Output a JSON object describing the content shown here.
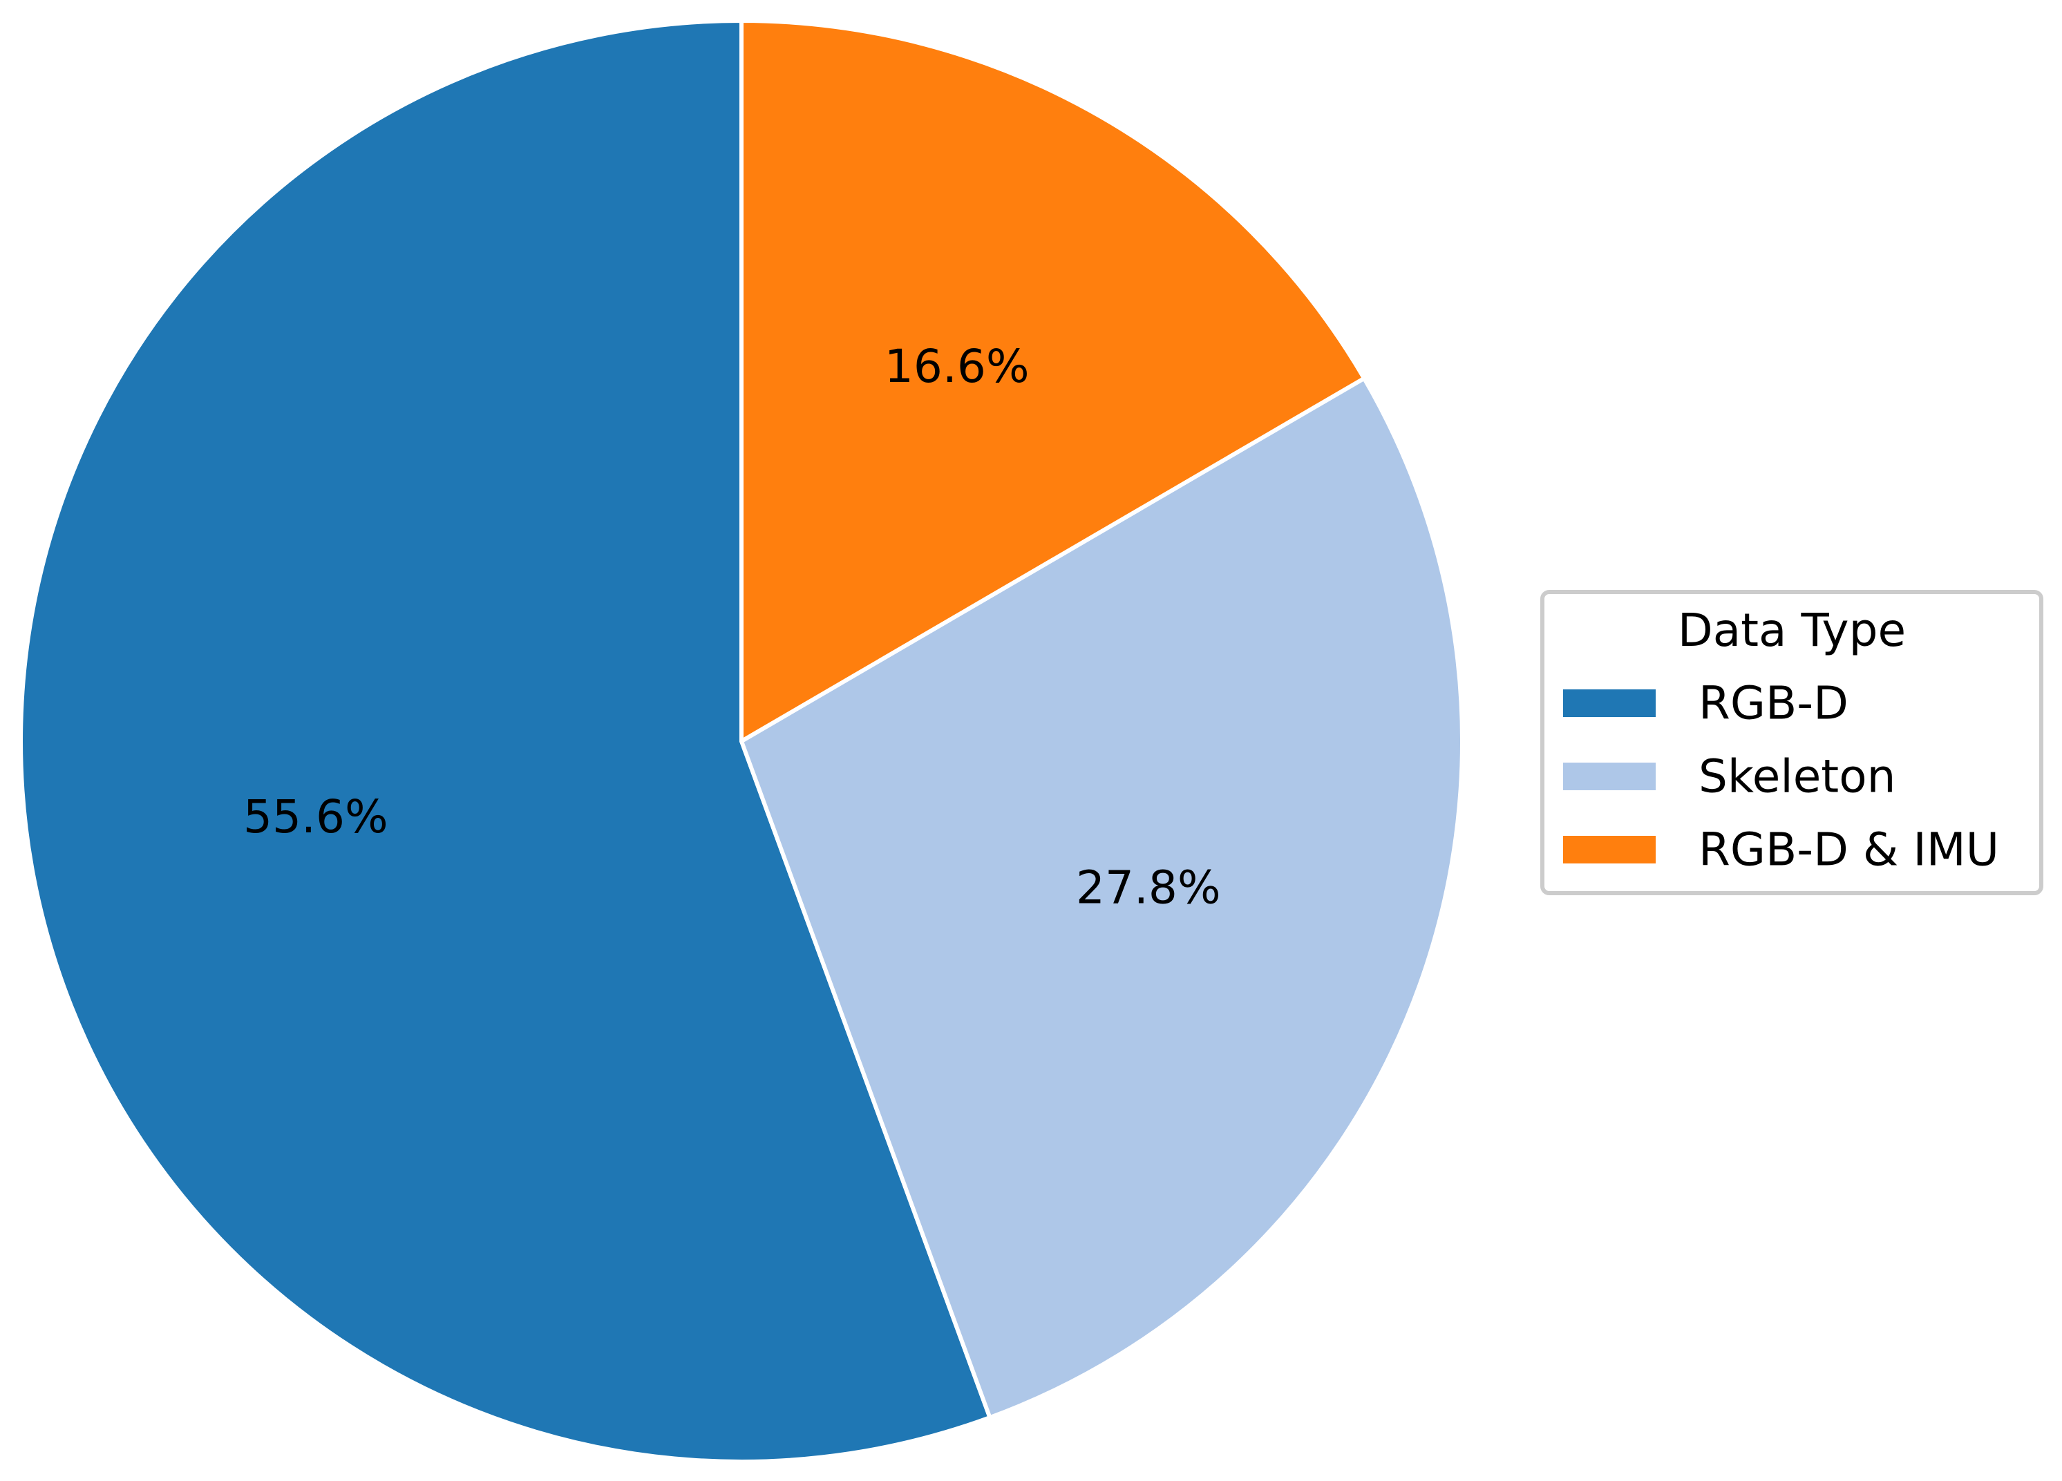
{
  "chart_data": {
    "type": "pie",
    "slices": [
      {
        "label": "RGB-D",
        "value": 55.6,
        "display": "55.6%",
        "color": "#1f77b4"
      },
      {
        "label": "Skeleton",
        "value": 27.8,
        "display": "27.8%",
        "color": "#aec7e8"
      },
      {
        "label": "RGB-D & IMU",
        "value": 16.6,
        "display": "16.6%",
        "color": "#ff7f0e"
      }
    ],
    "start": "top",
    "direction": "counterclockwise",
    "wedge_edge_color": "#ffffff",
    "legend": {
      "title": "Data Type",
      "placement": "right"
    }
  }
}
